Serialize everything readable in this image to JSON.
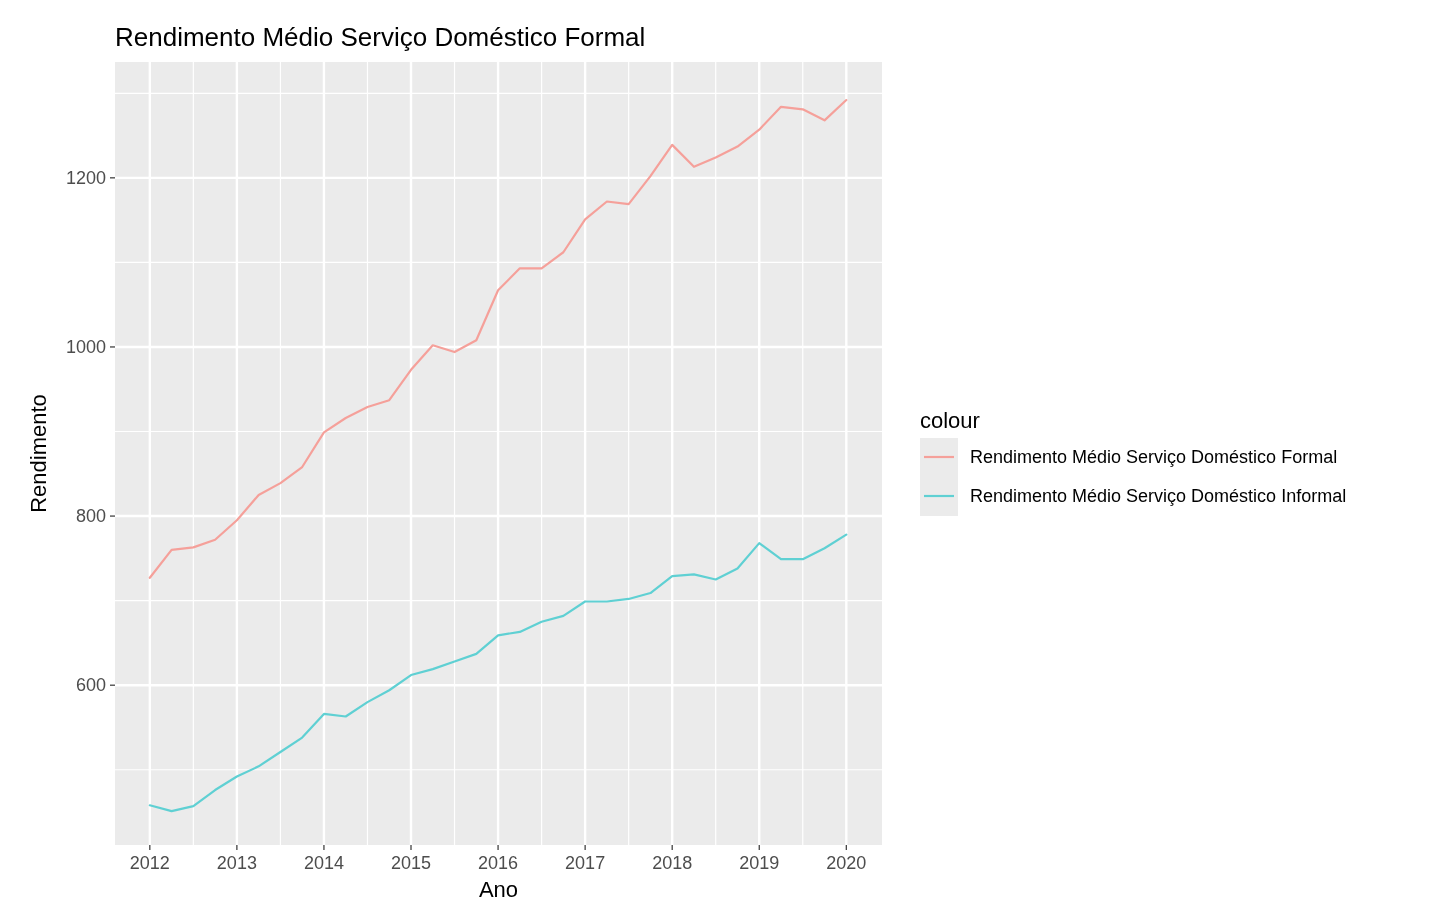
{
  "chart_data": {
    "type": "line",
    "title": "Rendimento Médio Serviço Doméstico Formal",
    "xlabel": "Ano",
    "ylabel": "Rendimento",
    "legend_title": "colour",
    "legend": "right",
    "grid": true,
    "x": [
      2012,
      2012.25,
      2012.5,
      2012.75,
      2013,
      2013.25,
      2013.5,
      2013.75,
      2014,
      2014.25,
      2014.5,
      2014.75,
      2015,
      2015.25,
      2015.5,
      2015.75,
      2016,
      2016.25,
      2016.5,
      2016.75,
      2017,
      2017.25,
      2017.5,
      2017.75,
      2018,
      2018.25,
      2018.5,
      2018.75,
      2019,
      2019.25,
      2019.5,
      2019.75,
      2020
    ],
    "xlim": [
      2011.6,
      2020.41
    ],
    "xticks": [
      2012,
      2013,
      2014,
      2015,
      2016,
      2017,
      2018,
      2019,
      2020
    ],
    "ylim": [
      411,
      1337
    ],
    "yticks": [
      600,
      800,
      1000,
      1200
    ],
    "series": [
      {
        "name": "Rendimento Médio Serviço Doméstico Formal",
        "color": "#f5a09a",
        "values": [
          727,
          760,
          763,
          772,
          795,
          825,
          839,
          858,
          899,
          916,
          929,
          937,
          973,
          1002,
          994,
          1008,
          1067,
          1093,
          1093,
          1112,
          1151,
          1172,
          1169,
          1202,
          1239,
          1213,
          1224,
          1237,
          1257,
          1284,
          1281,
          1268,
          1292
        ]
      },
      {
        "name": "Rendimento Médio Serviço Doméstico Informal",
        "color": "#5fd0d3",
        "values": [
          458,
          451,
          457,
          476,
          492,
          504,
          521,
          538,
          566,
          563,
          580,
          594,
          612,
          619,
          628,
          637,
          659,
          663,
          675,
          682,
          699,
          699,
          702,
          709,
          729,
          731,
          725,
          738,
          768,
          749,
          749,
          762,
          778
        ]
      }
    ]
  }
}
